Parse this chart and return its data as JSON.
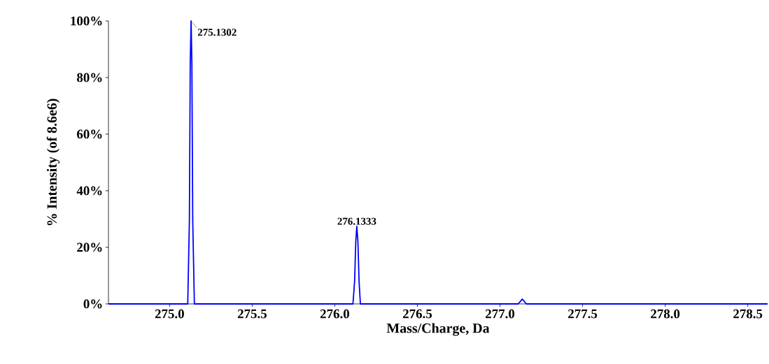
{
  "chart_data": {
    "type": "line",
    "xlabel": "Mass/Charge, Da",
    "ylabel": "% Intensity (of 8.6e6)",
    "xlim": [
      274.63,
      278.62
    ],
    "ylim": [
      0,
      100
    ],
    "xticks": [
      {
        "value": 275,
        "label": "275.0"
      },
      275.5,
      {
        "value": 276,
        "label": "276.0"
      },
      276.5,
      {
        "value": 277,
        "label": "277.0"
      },
      277.5,
      {
        "value": 278,
        "label": "278.0"
      },
      278.5
    ],
    "yticks": [
      {
        "value": 0,
        "label": "0%"
      },
      {
        "value": 20,
        "label": "20%"
      },
      {
        "value": 40,
        "label": "40%"
      },
      {
        "value": 60,
        "label": "60%"
      },
      {
        "value": 80,
        "label": "80%"
      },
      {
        "value": 100,
        "label": "100%"
      }
    ],
    "x": [
      274.63,
      275.11,
      275.12,
      275.125,
      275.1302,
      275.135,
      275.14,
      275.15,
      276.11,
      276.12,
      276.127,
      276.1333,
      276.14,
      276.147,
      276.155,
      277.11,
      277.125,
      277.135,
      277.145,
      277.16,
      278.62
    ],
    "series": [
      {
        "color": "#0000ff",
        "values": [
          0,
          0,
          30,
          85,
          100,
          85,
          30,
          0,
          0,
          8,
          22,
          27.4,
          22,
          8,
          0,
          0,
          1,
          1.7,
          1,
          0,
          0
        ]
      }
    ],
    "annotations": [
      {
        "text": "275.1302",
        "x": 275.1302,
        "y": 100
      },
      {
        "text": "276.1333",
        "x": 276.1333,
        "y": 27.4
      }
    ],
    "marker": "none",
    "line_style": "solid"
  }
}
